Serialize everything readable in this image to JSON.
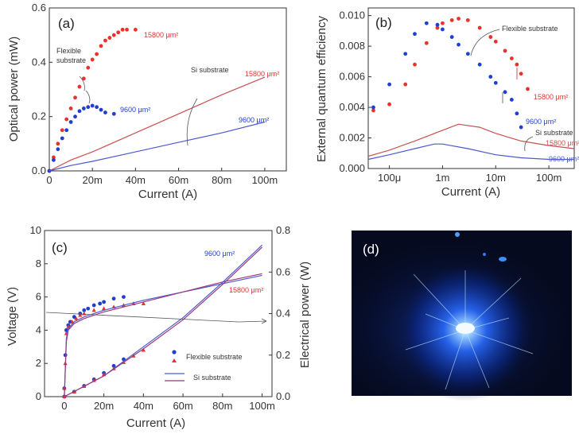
{
  "chart_data": [
    {
      "id": "a",
      "type": "scatter",
      "panel_label": "(a)",
      "xlabel": "Current (A)",
      "ylabel": "Optical power (mW)",
      "xlim": [
        0,
        0.11
      ],
      "ylim": [
        0,
        0.6
      ],
      "xticks": [
        0,
        0.02,
        0.04,
        0.06,
        0.08,
        0.1
      ],
      "xtick_labels": [
        "0",
        "20m",
        "40m",
        "60m",
        "80m",
        "100m"
      ],
      "yticks": [
        0,
        0.2,
        0.4,
        0.6
      ],
      "ytick_labels": [
        "0.0",
        "0.2",
        "0.4",
        "0.6"
      ],
      "series": [
        {
          "name": "15800 μm²",
          "group": "Flexible substrate",
          "style": "markers",
          "color": "#e8322b",
          "x": [
            0,
            0.002,
            0.004,
            0.006,
            0.008,
            0.01,
            0.012,
            0.014,
            0.016,
            0.018,
            0.02,
            0.022,
            0.024,
            0.026,
            0.028,
            0.03,
            0.032,
            0.034,
            0.036,
            0.04
          ],
          "y": [
            0,
            0.05,
            0.1,
            0.15,
            0.19,
            0.23,
            0.27,
            0.31,
            0.34,
            0.38,
            0.41,
            0.43,
            0.46,
            0.48,
            0.49,
            0.5,
            0.51,
            0.52,
            0.52,
            0.52
          ]
        },
        {
          "name": "9600 μm²",
          "group": "Flexible substrate",
          "style": "markers",
          "color": "#1f3fd0",
          "x": [
            0,
            0.002,
            0.004,
            0.006,
            0.008,
            0.01,
            0.012,
            0.014,
            0.016,
            0.018,
            0.02,
            0.022,
            0.024,
            0.026,
            0.03
          ],
          "y": [
            0,
            0.04,
            0.08,
            0.12,
            0.15,
            0.18,
            0.2,
            0.22,
            0.23,
            0.235,
            0.24,
            0.235,
            0.225,
            0.215,
            0.21
          ]
        },
        {
          "name": "15800 μm²",
          "group": "Si substrate",
          "style": "line",
          "color": "#c85050",
          "x": [
            0,
            0.01,
            0.02,
            0.04,
            0.06,
            0.08,
            0.1
          ],
          "y": [
            0,
            0.04,
            0.07,
            0.14,
            0.21,
            0.28,
            0.345
          ]
        },
        {
          "name": "9600 μm²",
          "group": "Si substrate",
          "style": "line",
          "color": "#4a5ad0",
          "x": [
            0,
            0.01,
            0.02,
            0.04,
            0.06,
            0.08,
            0.1
          ],
          "y": [
            0,
            0.02,
            0.035,
            0.07,
            0.105,
            0.14,
            0.18
          ]
        }
      ],
      "annotations": [
        "Flexible substrate",
        "Si substrate",
        "15800 μm²",
        "9600 μm²",
        "15800 μm²",
        "9600 μm²"
      ]
    },
    {
      "id": "b",
      "type": "scatter",
      "panel_label": "(b)",
      "xlabel": "Current (A)",
      "ylabel": "External quantum efficiency",
      "xscale": "log",
      "xlim": [
        4e-05,
        0.3
      ],
      "ylim": [
        0,
        0.0105
      ],
      "xticks": [
        0.0001,
        0.001,
        0.01,
        0.1
      ],
      "xtick_labels": [
        "100μ",
        "1m",
        "10m",
        "100m"
      ],
      "yticks": [
        0,
        0.002,
        0.004,
        0.006,
        0.008,
        0.01
      ],
      "ytick_labels": [
        "0.000",
        "0.002",
        "0.004",
        "0.006",
        "0.008",
        "0.010"
      ],
      "series": [
        {
          "name": "15800 μm²",
          "group": "Flexible substrate",
          "style": "markers",
          "color": "#e8322b",
          "x": [
            5e-05,
            0.0001,
            0.0002,
            0.0003,
            0.0005,
            0.0008,
            0.001,
            0.0015,
            0.002,
            0.003,
            0.005,
            0.008,
            0.01,
            0.015,
            0.02,
            0.025,
            0.03,
            0.04
          ],
          "y": [
            0.0038,
            0.0042,
            0.0055,
            0.0068,
            0.0082,
            0.0092,
            0.0095,
            0.0097,
            0.0098,
            0.0097,
            0.0092,
            0.0086,
            0.0083,
            0.0077,
            0.0072,
            0.0068,
            0.0062,
            0.0052
          ]
        },
        {
          "name": "9600 μm²",
          "group": "Flexible substrate",
          "style": "markers",
          "color": "#1f3fd0",
          "x": [
            5e-05,
            0.0001,
            0.0002,
            0.0003,
            0.0005,
            0.0008,
            0.001,
            0.0015,
            0.002,
            0.003,
            0.005,
            0.008,
            0.01,
            0.015,
            0.02,
            0.025,
            0.03
          ],
          "y": [
            0.004,
            0.0055,
            0.0075,
            0.0088,
            0.0095,
            0.0094,
            0.0091,
            0.0086,
            0.0081,
            0.0075,
            0.0068,
            0.006,
            0.0056,
            0.005,
            0.0045,
            0.0036,
            0.0027
          ]
        },
        {
          "name": "15800 μm²",
          "group": "Si substrate",
          "style": "line",
          "color": "#c85050",
          "x": [
            4e-05,
            0.0001,
            0.0003,
            0.001,
            0.002,
            0.005,
            0.01,
            0.03,
            0.1,
            0.3
          ],
          "y": [
            0.0008,
            0.0012,
            0.0018,
            0.0025,
            0.0029,
            0.0027,
            0.0023,
            0.0018,
            0.0015,
            0.0013
          ]
        },
        {
          "name": "9600 μm²",
          "group": "Si substrate",
          "style": "line",
          "color": "#4a5ad0",
          "x": [
            4e-05,
            0.0001,
            0.0003,
            0.0007,
            0.001,
            0.003,
            0.01,
            0.03,
            0.1,
            0.3
          ],
          "y": [
            0.0006,
            0.0009,
            0.0013,
            0.0016,
            0.0016,
            0.0013,
            0.0009,
            0.0007,
            0.0006,
            0.0006
          ]
        }
      ],
      "annotations": [
        "Flexible substrate",
        "Si substrate",
        "15800 μm²",
        "9600 μm²",
        "15800 μm²",
        "9600 μm²"
      ]
    },
    {
      "id": "c",
      "type": "scatter",
      "panel_label": "(c)",
      "xlabel": "Current (A)",
      "ylabel": "Voltage (V)",
      "ylabel_right": "Electrical power (W)",
      "xlim": [
        -0.01,
        0.105
      ],
      "ylim": [
        0,
        10
      ],
      "ylim_right": [
        0,
        0.8
      ],
      "xticks": [
        0,
        0.02,
        0.04,
        0.06,
        0.08,
        0.1
      ],
      "xtick_labels": [
        "0",
        "20m",
        "40m",
        "60m",
        "80m",
        "100m"
      ],
      "yticks": [
        0,
        2,
        4,
        6,
        8,
        10
      ],
      "ytick_labels": [
        "0",
        "2",
        "4",
        "6",
        "8",
        "10"
      ],
      "yticks_right": [
        0,
        0.2,
        0.4,
        0.6,
        0.8
      ],
      "ytick_labels_right": [
        "0.0",
        "0.2",
        "0.4",
        "0.6",
        "0.8"
      ],
      "series": [
        {
          "name": "Flexible substrate",
          "area": "9600 μm²",
          "quantity": "voltage",
          "style": "markers",
          "color": "#1f3fd0",
          "x": [
            0,
            0.0005,
            0.001,
            0.002,
            0.003,
            0.005,
            0.008,
            0.01,
            0.012,
            0.015,
            0.018,
            0.02,
            0.025,
            0.03
          ],
          "y": [
            0.5,
            2.5,
            4,
            4.3,
            4.5,
            4.8,
            5,
            5.2,
            5.3,
            5.5,
            5.6,
            5.7,
            5.9,
            6
          ]
        },
        {
          "name": "Flexible substrate",
          "area": "15800 μm²",
          "quantity": "voltage",
          "style": "markers",
          "color": "#e8322b",
          "x": [
            0,
            0.0005,
            0.001,
            0.002,
            0.004,
            0.006,
            0.008,
            0.01,
            0.015,
            0.02,
            0.025,
            0.03,
            0.035,
            0.04
          ],
          "y": [
            0.5,
            2,
            3.8,
            4.2,
            4.5,
            4.7,
            4.9,
            5,
            5.2,
            5.3,
            5.4,
            5.5,
            5.6,
            5.6
          ]
        },
        {
          "name": "Flexible substrate",
          "area": "9600 μm²",
          "quantity": "electrical power",
          "style": "markers",
          "color": "#1f3fd0",
          "x": [
            0,
            0.005,
            0.01,
            0.015,
            0.02,
            0.025,
            0.03
          ],
          "y": [
            0,
            0.024,
            0.052,
            0.083,
            0.114,
            0.148,
            0.18
          ]
        },
        {
          "name": "Flexible substrate",
          "area": "15800 μm²",
          "quantity": "electrical power",
          "style": "markers",
          "color": "#e8322b",
          "x": [
            0,
            0.005,
            0.01,
            0.015,
            0.02,
            0.025,
            0.03,
            0.035,
            0.04
          ],
          "y": [
            0,
            0.023,
            0.05,
            0.078,
            0.106,
            0.135,
            0.165,
            0.196,
            0.224
          ]
        },
        {
          "name": "Si substrate",
          "area": "9600 μm²",
          "quantity": "voltage",
          "style": "line",
          "color": "#4a5ad0",
          "x": [
            0,
            0.001,
            0.002,
            0.005,
            0.01,
            0.02,
            0.04,
            0.06,
            0.08,
            0.1
          ],
          "y": [
            0,
            3.5,
            4.1,
            4.5,
            4.8,
            5.2,
            5.8,
            6.3,
            6.8,
            7.3
          ]
        },
        {
          "name": "Si substrate",
          "area": "15800 μm²",
          "quantity": "voltage",
          "style": "line",
          "color": "#9a3a7a",
          "x": [
            0,
            0.001,
            0.002,
            0.005,
            0.01,
            0.02,
            0.04,
            0.06,
            0.08,
            0.1
          ],
          "y": [
            0,
            3.3,
            4,
            4.4,
            4.7,
            5.1,
            5.7,
            6.3,
            6.9,
            7.4
          ]
        },
        {
          "name": "Si substrate",
          "area": "9600 μm²",
          "quantity": "electrical power",
          "style": "line",
          "color": "#4a5ad0",
          "x": [
            0,
            0.02,
            0.04,
            0.06,
            0.08,
            0.1
          ],
          "y": [
            0,
            0.1,
            0.24,
            0.38,
            0.55,
            0.73
          ]
        },
        {
          "name": "Si substrate",
          "area": "15800 μm²",
          "quantity": "electrical power",
          "style": "line",
          "color": "#9a3a7a",
          "x": [
            0,
            0.02,
            0.04,
            0.06,
            0.08,
            0.1
          ],
          "y": [
            0,
            0.1,
            0.23,
            0.37,
            0.54,
            0.72
          ]
        }
      ],
      "legend": [
        {
          "label": "Flexible substrate",
          "style": "markers"
        },
        {
          "label": "Si substrate",
          "style": "line"
        }
      ],
      "legend_position": "lower-right",
      "annotations": [
        "9600 μm²",
        "15800 μm²"
      ]
    }
  ],
  "photo": {
    "panel_label": "(d)",
    "description_colors": {
      "background": "#050a1e",
      "glow": "#2a6cff",
      "core": "#e8f6ff"
    }
  },
  "labels": {
    "flexible_substrate": "Flexible substrate",
    "flexible_substrate_a": [
      "Flexible",
      "substrate"
    ],
    "si_substrate": "Si substrate",
    "area_15800": "15800 μm²",
    "area_9600": "9600 μm²"
  }
}
